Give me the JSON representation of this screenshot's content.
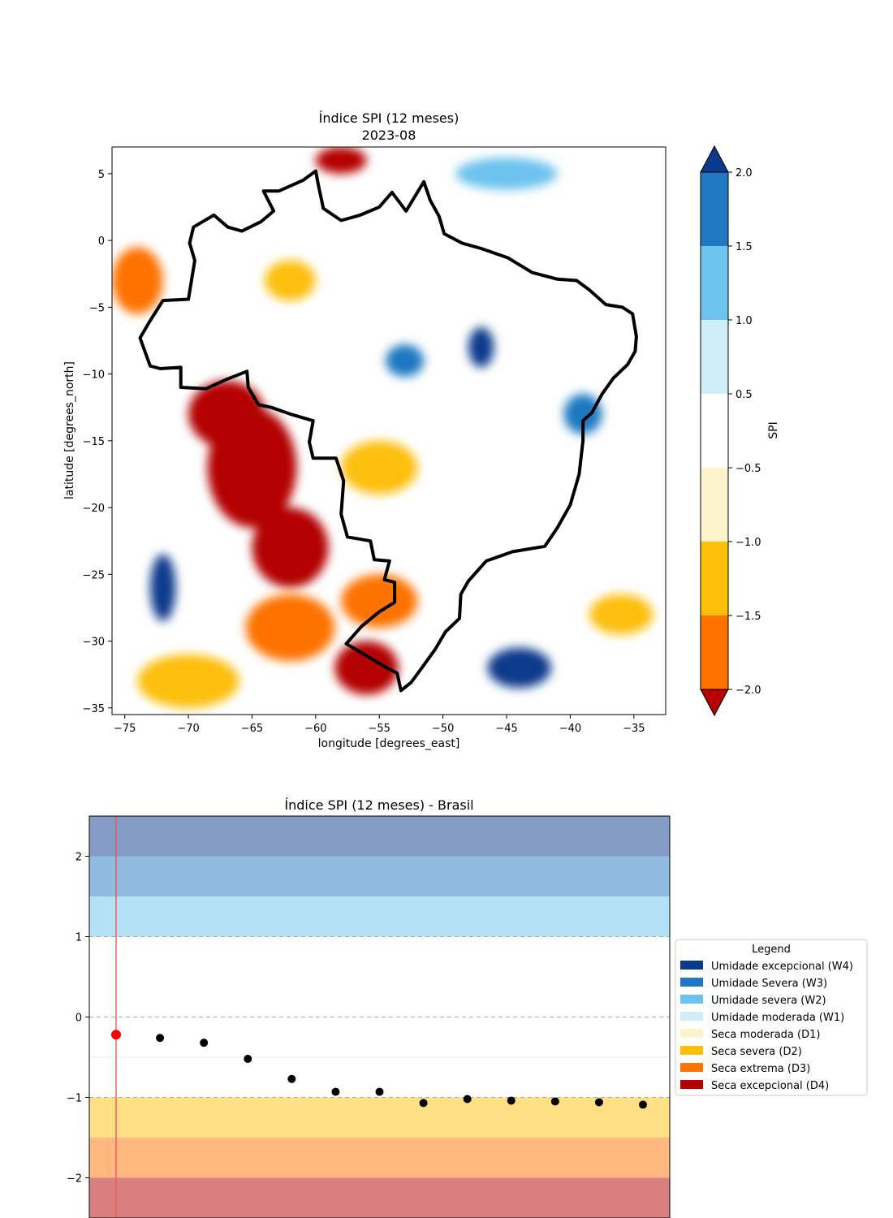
{
  "chart_data": [
    {
      "type": "heatmap",
      "title": "Índice SPI (12 meses)",
      "subtitle": "2023-08",
      "xlabel": "longitude [degrees_east]",
      "ylabel": "latitude [degrees_north]",
      "xlim": [
        -76,
        -32.5
      ],
      "ylim": [
        -35.5,
        7
      ],
      "xticks": [
        -75,
        -70,
        -65,
        -60,
        -55,
        -50,
        -45,
        -40,
        -35
      ],
      "yticks": [
        5,
        0,
        -5,
        -10,
        -15,
        -20,
        -25,
        -30,
        -35
      ],
      "colorbar": {
        "label": "SPI",
        "range": [
          -2.0,
          2.0
        ],
        "ticks": [
          "2.0",
          "1.5",
          "1.0",
          "0.5",
          "−0.5",
          "−1.0",
          "−1.5",
          "−2.0"
        ],
        "bins": [
          {
            "from": 1.5,
            "to": 2.0,
            "color": "#1f78c1"
          },
          {
            "from": 1.0,
            "to": 1.5,
            "color": "#6cc3ee"
          },
          {
            "from": 0.5,
            "to": 1.0,
            "color": "#d0eefa"
          },
          {
            "from": -0.5,
            "to": 0.5,
            "color": "#ffffff"
          },
          {
            "from": -1.0,
            "to": -0.5,
            "color": "#fdf3cd"
          },
          {
            "from": -1.5,
            "to": -1.0,
            "color": "#fdbf0a"
          },
          {
            "from": -2.0,
            "to": -1.5,
            "color": "#fe7200"
          }
        ],
        "extend_max_color": "#0a3a8c",
        "extend_min_color": "#b40000"
      },
      "outline": "Brasil",
      "outline_lonlat": [
        [
          -51.5,
          4.4
        ],
        [
          -51.0,
          3.0
        ],
        [
          -50.3,
          1.8
        ],
        [
          -49.9,
          0.5
        ],
        [
          -48.5,
          -0.2
        ],
        [
          -47.0,
          -0.6
        ],
        [
          -44.9,
          -1.3
        ],
        [
          -43.0,
          -2.4
        ],
        [
          -41.0,
          -2.9
        ],
        [
          -39.5,
          -3.0
        ],
        [
          -38.5,
          -3.7
        ],
        [
          -37.2,
          -4.8
        ],
        [
          -35.9,
          -5.0
        ],
        [
          -35.1,
          -5.5
        ],
        [
          -34.8,
          -7.2
        ],
        [
          -34.9,
          -8.3
        ],
        [
          -35.5,
          -9.3
        ],
        [
          -36.6,
          -10.3
        ],
        [
          -37.5,
          -11.5
        ],
        [
          -38.3,
          -12.9
        ],
        [
          -39.0,
          -13.5
        ],
        [
          -39.0,
          -15.0
        ],
        [
          -39.3,
          -17.5
        ],
        [
          -40.0,
          -19.8
        ],
        [
          -41.0,
          -21.5
        ],
        [
          -42.0,
          -22.9
        ],
        [
          -44.5,
          -23.3
        ],
        [
          -46.6,
          -24.0
        ],
        [
          -48.0,
          -25.5
        ],
        [
          -48.6,
          -26.5
        ],
        [
          -48.7,
          -28.3
        ],
        [
          -49.8,
          -29.3
        ],
        [
          -50.6,
          -30.6
        ],
        [
          -51.5,
          -31.8
        ],
        [
          -52.5,
          -33.1
        ],
        [
          -53.3,
          -33.7
        ],
        [
          -53.6,
          -32.4
        ],
        [
          -54.6,
          -31.9
        ],
        [
          -56.0,
          -31.1
        ],
        [
          -57.6,
          -30.2
        ],
        [
          -56.4,
          -28.9
        ],
        [
          -55.0,
          -27.8
        ],
        [
          -53.8,
          -27.1
        ],
        [
          -53.8,
          -25.6
        ],
        [
          -54.6,
          -25.4
        ],
        [
          -54.2,
          -24.0
        ],
        [
          -55.4,
          -23.9
        ],
        [
          -55.7,
          -22.5
        ],
        [
          -57.5,
          -22.2
        ],
        [
          -58.0,
          -20.5
        ],
        [
          -57.8,
          -18.0
        ],
        [
          -58.4,
          -16.3
        ],
        [
          -60.2,
          -16.3
        ],
        [
          -60.5,
          -15.1
        ],
        [
          -60.2,
          -13.5
        ],
        [
          -62.0,
          -13.0
        ],
        [
          -63.5,
          -12.5
        ],
        [
          -64.5,
          -12.3
        ],
        [
          -65.3,
          -11.0
        ],
        [
          -65.4,
          -9.8
        ],
        [
          -67.0,
          -10.4
        ],
        [
          -68.6,
          -11.1
        ],
        [
          -70.6,
          -11.0
        ],
        [
          -70.6,
          -9.5
        ],
        [
          -72.2,
          -9.6
        ],
        [
          -73.0,
          -9.4
        ],
        [
          -73.8,
          -7.3
        ],
        [
          -73.0,
          -6.0
        ],
        [
          -72.0,
          -4.5
        ],
        [
          -70.0,
          -4.4
        ],
        [
          -69.5,
          -1.5
        ],
        [
          -69.9,
          -0.2
        ],
        [
          -69.6,
          1.0
        ],
        [
          -68.0,
          1.9
        ],
        [
          -66.9,
          1.0
        ],
        [
          -65.8,
          0.7
        ],
        [
          -64.3,
          1.4
        ],
        [
          -63.3,
          2.2
        ],
        [
          -64.1,
          3.7
        ],
        [
          -62.9,
          3.7
        ],
        [
          -61.0,
          4.5
        ],
        [
          -60.0,
          5.2
        ],
        [
          -59.8,
          4.2
        ],
        [
          -59.4,
          2.4
        ],
        [
          -58.0,
          1.5
        ],
        [
          -56.5,
          1.9
        ],
        [
          -55.0,
          2.5
        ],
        [
          -54.0,
          3.6
        ],
        [
          -52.9,
          2.2
        ],
        [
          -51.5,
          4.4
        ]
      ],
      "anomaly_blobs": [
        {
          "lon": -65,
          "lat": -17,
          "rx": 3.5,
          "ry": 4.5,
          "level": "D4"
        },
        {
          "lon": -62,
          "lat": -23,
          "rx": 3.0,
          "ry": 3.0,
          "level": "D4"
        },
        {
          "lon": -67,
          "lat": -13,
          "rx": 3.0,
          "ry": 2.5,
          "level": "D4"
        },
        {
          "lon": -62,
          "lat": -29,
          "rx": 3.5,
          "ry": 2.5,
          "level": "D3"
        },
        {
          "lon": -56,
          "lat": -32,
          "rx": 2.5,
          "ry": 2.0,
          "level": "D4"
        },
        {
          "lon": -55,
          "lat": -27,
          "rx": 3.0,
          "ry": 2.0,
          "level": "D3"
        },
        {
          "lon": -70,
          "lat": -33,
          "rx": 4.0,
          "ry": 2.0,
          "level": "D2"
        },
        {
          "lon": -58,
          "lat": 6,
          "rx": 2.0,
          "ry": 1.0,
          "level": "D4"
        },
        {
          "lon": -74,
          "lat": -3,
          "rx": 2.0,
          "ry": 2.5,
          "level": "D3"
        },
        {
          "lon": -44,
          "lat": -32,
          "rx": 2.5,
          "ry": 1.5,
          "level": "W4"
        },
        {
          "lon": -47,
          "lat": -8,
          "rx": 1.0,
          "ry": 1.5,
          "level": "W4"
        },
        {
          "lon": -53,
          "lat": -9,
          "rx": 1.5,
          "ry": 1.2,
          "level": "W3"
        },
        {
          "lon": -72,
          "lat": -26,
          "rx": 1.0,
          "ry": 2.5,
          "level": "W4"
        },
        {
          "lon": -39,
          "lat": -13,
          "rx": 1.5,
          "ry": 1.5,
          "level": "W3"
        },
        {
          "lon": -45,
          "lat": 5,
          "rx": 4.0,
          "ry": 1.2,
          "level": "W2"
        },
        {
          "lon": -55,
          "lat": -17,
          "rx": 3.0,
          "ry": 2.0,
          "level": "D2"
        },
        {
          "lon": -62,
          "lat": -3,
          "rx": 2.0,
          "ry": 1.5,
          "level": "D2"
        },
        {
          "lon": -36,
          "lat": -28,
          "rx": 2.5,
          "ry": 1.5,
          "level": "D2"
        }
      ]
    },
    {
      "type": "scatter",
      "title": "Índice SPI (12 meses) - Brasil",
      "xlabel": "",
      "ylabel": "",
      "ylim": [
        -2.5,
        2.5
      ],
      "xlim": [
        0,
        13
      ],
      "yticks": [
        "2",
        "1",
        "0",
        "−1",
        "−2"
      ],
      "x": [
        1,
        2,
        3,
        4,
        5,
        6,
        7,
        8,
        9,
        10,
        11,
        12,
        13
      ],
      "values": [
        -0.22,
        -0.26,
        -0.32,
        -0.52,
        -0.77,
        -0.93,
        -0.93,
        -1.07,
        -1.02,
        -1.04,
        -1.05,
        -1.06,
        -1.09
      ],
      "highlight_index": 0,
      "highlight_color": "#ff0000",
      "point_color": "#000000",
      "bands": [
        {
          "from": 2.0,
          "to": 2.5,
          "color": "#0a3a8c"
        },
        {
          "from": 1.5,
          "to": 2.0,
          "color": "#1f78c1"
        },
        {
          "from": 1.0,
          "to": 1.5,
          "color": "#6cc3ee"
        },
        {
          "from": -1.5,
          "to": -1.0,
          "color": "#fdbf0a"
        },
        {
          "from": -2.0,
          "to": -1.5,
          "color": "#fe7200"
        },
        {
          "from": -2.5,
          "to": -2.0,
          "color": "#b40000"
        }
      ],
      "dashed_lines": [
        1,
        0,
        -1
      ],
      "legend": {
        "title": "Legend",
        "placement": "right",
        "entries": [
          {
            "label": "Umidade excepcional (W4)",
            "color": "#0a3a8c"
          },
          {
            "label": "Umidade Severa (W3)",
            "color": "#1f78c1"
          },
          {
            "label": "Umidade severa (W2)",
            "color": "#6cc3ee"
          },
          {
            "label": "Umidade moderada (W1)",
            "color": "#d0eefa"
          },
          {
            "label": "Seca moderada (D1)",
            "color": "#fdf3cd"
          },
          {
            "label": "Seca severa (D2)",
            "color": "#fdbf0a"
          },
          {
            "label": "Seca extrema (D3)",
            "color": "#fe7200"
          },
          {
            "label": "Seca excepcional (D4)",
            "color": "#b40000"
          }
        ]
      }
    }
  ]
}
